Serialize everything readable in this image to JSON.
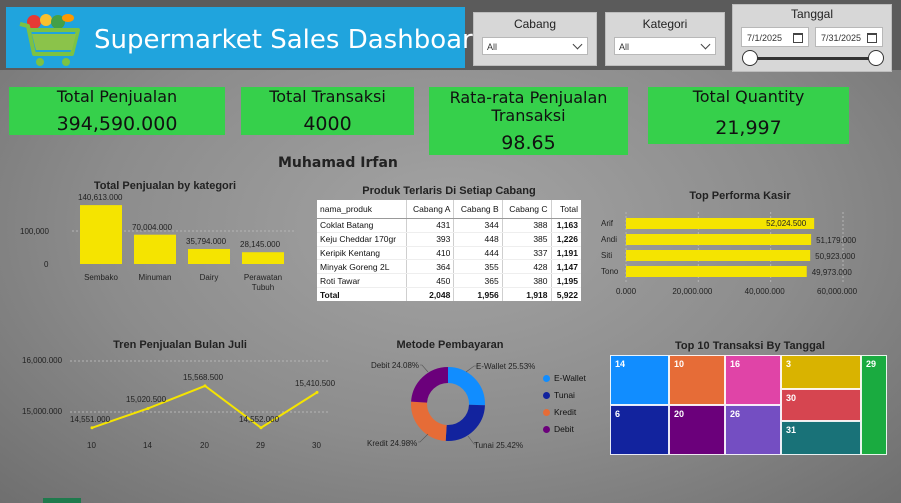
{
  "header": {
    "title": "Supermarket Sales Dashboard",
    "slicers": {
      "cabang": {
        "label": "Cabang",
        "value": "All"
      },
      "kategori": {
        "label": "Kategori",
        "value": "All"
      },
      "tanggal": {
        "label": "Tanggal",
        "start": "7/1/2025",
        "end": "7/31/2025"
      }
    }
  },
  "kpis": [
    {
      "label": "Total Penjualan",
      "value": "394,590.000"
    },
    {
      "label": "Total Transaksi",
      "value": "4000"
    },
    {
      "label": "Rata-rata Penjualan Transaksi",
      "value": "98.65"
    },
    {
      "label": "Total Quantity",
      "value": "21,997"
    }
  ],
  "author": "Muhamad Irfan",
  "colors": {
    "accent_yellow": "#f5e400",
    "kpi_green": "#36d04b",
    "header_blue": "#20a4dd"
  },
  "chart_data": [
    {
      "type": "bar",
      "title": "Total Penjualan by kategori",
      "categories": [
        "Sembako",
        "Minuman",
        "Dairy",
        "Perawatan Tubuh"
      ],
      "values": [
        140613,
        70004,
        35794,
        28145
      ],
      "value_labels": [
        "140,613.000",
        "70,004.000",
        "35,794.000",
        "28,145.000"
      ],
      "y_ticks": [
        "100,000",
        "0"
      ],
      "ylim": [
        0,
        160000
      ]
    },
    {
      "type": "bar",
      "orientation": "horizontal",
      "title": "Top Performa Kasir",
      "categories": [
        "Arif",
        "Andi",
        "Siti",
        "Tono"
      ],
      "values": [
        52024500,
        51179000,
        50923000,
        49973000
      ],
      "value_labels": [
        "52,024.500",
        "51,179.000",
        "50,923.000",
        "49,973.000"
      ],
      "x_ticks": [
        "0.000",
        "20,000.000",
        "40,000.000",
        "60,000.000"
      ],
      "xlim": [
        0,
        60000000
      ]
    },
    {
      "type": "line",
      "title": "Tren Penjualan Bulan Juli",
      "x": [
        "10",
        "14",
        "20",
        "29",
        "30"
      ],
      "values": [
        14551000,
        15020500,
        15568500,
        14552000,
        15410500
      ],
      "value_labels": [
        "14,551.000",
        "15,020.500",
        "15,568.500",
        "14,552.000",
        "15,410.500"
      ],
      "y_ticks": [
        "16,000.000",
        "15,000.000"
      ],
      "ylim": [
        14400000,
        16100000
      ]
    },
    {
      "type": "pie",
      "title": "Metode Pembayaran",
      "categories": [
        "E-Wallet",
        "Tunai",
        "Kredit",
        "Debit"
      ],
      "values": [
        25.53,
        25.42,
        24.98,
        24.08
      ],
      "value_labels": [
        "E-Wallet 25.53%",
        "Tunai 25.42%",
        "Kredit 24.98%",
        "Debit 24.08%"
      ],
      "colors": [
        "#118dff",
        "#12239e",
        "#e66c37",
        "#6b007b"
      ]
    },
    {
      "type": "treemap",
      "title": "Top 10 Transaksi By Tanggal",
      "labels": [
        "14",
        "10",
        "16",
        "3",
        "29",
        "6",
        "20",
        "26",
        "30",
        "31"
      ]
    }
  ],
  "table": {
    "title": "Produk Terlaris Di Setiap Cabang",
    "columns": [
      "nama_produk",
      "Cabang A",
      "Cabang B",
      "Cabang C",
      "Total"
    ],
    "rows": [
      [
        "Coklat Batang",
        "431",
        "344",
        "388",
        "1,163"
      ],
      [
        "Keju Cheddar 170gr",
        "393",
        "448",
        "385",
        "1,226"
      ],
      [
        "Keripik Kentang",
        "410",
        "444",
        "337",
        "1,191"
      ],
      [
        "Minyak Goreng 2L",
        "364",
        "355",
        "428",
        "1,147"
      ],
      [
        "Roti Tawar",
        "450",
        "365",
        "380",
        "1,195"
      ]
    ],
    "total": [
      "Total",
      "2,048",
      "1,956",
      "1,918",
      "5,922"
    ]
  }
}
